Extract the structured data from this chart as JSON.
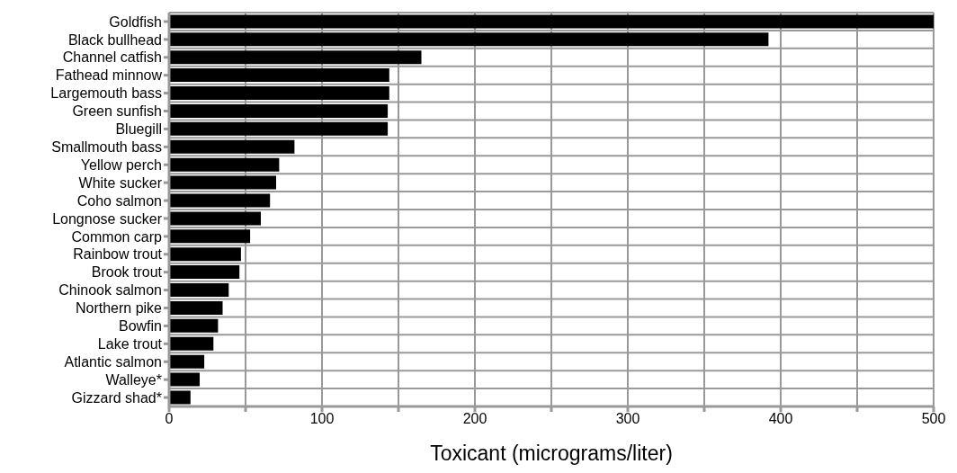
{
  "chart_data": {
    "type": "bar",
    "orientation": "horizontal",
    "xlabel": "Toxicant (micrograms/liter)",
    "categories": [
      "Goldfish",
      "Black bullhead",
      "Channel catfish",
      "Fathead minnow",
      "Largemouth bass",
      "Green sunfish",
      "Bluegill",
      "Smallmouth bass",
      "Yellow perch",
      "White sucker",
      "Coho salmon",
      "Longnose sucker",
      "Common carp",
      "Rainbow trout",
      "Brook trout",
      "Chinook salmon",
      "Northern pike",
      "Bowfin",
      "Lake trout",
      "Atlantic salmon",
      "Walleye*",
      "Gizzard shad*"
    ],
    "values": [
      500,
      392,
      165,
      144,
      144,
      143,
      143,
      82,
      72,
      70,
      66,
      60,
      53,
      47,
      46,
      39,
      35,
      32,
      29,
      23,
      20,
      14
    ],
    "color": "#000000",
    "xlim": [
      0,
      500
    ],
    "xticks": [
      0,
      {
        "value": 50,
        "label": null
      },
      100,
      {
        "value": 150,
        "label": null
      },
      200,
      {
        "value": 250,
        "label": null
      },
      300,
      {
        "value": 350,
        "label": null
      },
      400,
      {
        "value": 450,
        "label": null
      },
      500
    ],
    "grid": true
  }
}
